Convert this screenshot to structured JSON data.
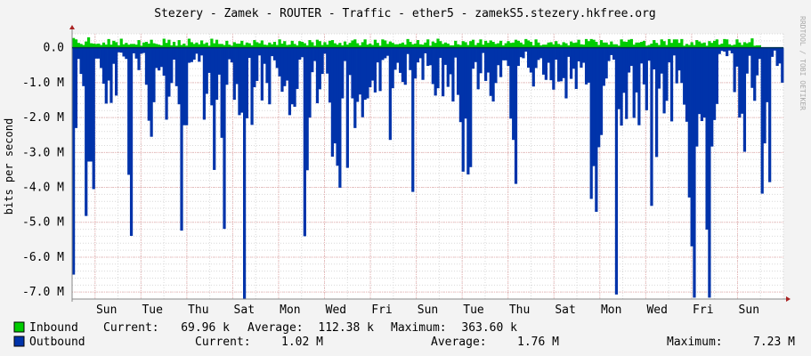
{
  "title": "Stezery - Zamek - ROUTER - Traffic - ether5 - zamekS5.stezery.hkfree.org",
  "watermark": "RRDTOOL / TOBI OETIKER",
  "colors": {
    "background": "#f3f3f3",
    "canvas": "#ffffff",
    "inbound": "#00cc00",
    "outbound": "#0033aa",
    "major_grid": "#e9b3b3",
    "minor_grid": "#d9d9d9",
    "axis": "#888888"
  },
  "chart_data": {
    "type": "area",
    "ylabel": "bits per second",
    "ylim": [
      -7200000,
      400000
    ],
    "y_ticks": [
      {
        "value": 0,
        "label": "0.0"
      },
      {
        "value": -1000000,
        "label": "-1.0 M"
      },
      {
        "value": -2000000,
        "label": "-2.0 M"
      },
      {
        "value": -3000000,
        "label": "-3.0 M"
      },
      {
        "value": -4000000,
        "label": "-4.0 M"
      },
      {
        "value": -5000000,
        "label": "-5.0 M"
      },
      {
        "value": -6000000,
        "label": "-6.0 M"
      },
      {
        "value": -7000000,
        "label": "-7.0 M"
      }
    ],
    "x_day_labels": [
      "Sun",
      "Tue",
      "Thu",
      "Sat",
      "Mon",
      "Wed",
      "Fri",
      "Sun",
      "Tue",
      "Thu",
      "Sat",
      "Mon",
      "Wed",
      "Fri",
      "Sun"
    ],
    "x_total_days": 31,
    "series": [
      {
        "name": "Inbound",
        "color": "#00cc00",
        "values": [
          280000,
          240000,
          140000,
          110000,
          80000,
          180000,
          300000,
          130000,
          120000,
          110000,
          120000,
          80000,
          150000,
          90000,
          250000,
          90000,
          200000,
          160000,
          70000,
          260000,
          100000,
          140000,
          90000,
          110000,
          110000,
          90000,
          220000,
          60000,
          150000,
          170000,
          120000,
          230000,
          130000,
          110000,
          90000,
          70000,
          260000,
          140000,
          230000,
          70000,
          170000,
          60000,
          220000,
          80000,
          120000,
          60000,
          260000,
          160000,
          110000,
          150000,
          100000,
          210000,
          110000,
          150000,
          60000,
          260000,
          130000,
          230000,
          110000,
          110000,
          80000,
          200000,
          90000,
          60000,
          160000,
          120000,
          120000,
          200000,
          80000,
          150000,
          130000,
          70000,
          220000,
          160000,
          130000,
          210000,
          90000,
          80000,
          150000,
          100000,
          170000,
          80000,
          240000,
          120000,
          190000,
          80000,
          90000,
          200000,
          110000,
          70000,
          190000,
          170000,
          130000,
          70000,
          220000,
          160000,
          60000,
          230000,
          190000,
          80000,
          160000,
          90000,
          200000,
          220000,
          130000,
          90000,
          140000,
          70000,
          180000,
          90000,
          140000,
          210000,
          240000,
          130000,
          70000,
          160000,
          240000,
          90000,
          120000,
          80000,
          230000,
          140000,
          60000,
          240000,
          210000,
          110000,
          180000,
          140000,
          100000,
          100000,
          120000,
          150000,
          90000,
          250000,
          170000,
          100000,
          120000,
          220000,
          100000,
          90000,
          150000,
          240000,
          60000,
          180000,
          140000,
          260000,
          190000,
          110000,
          150000,
          120000,
          70000,
          70000,
          200000,
          100000,
          80000,
          190000,
          160000,
          80000,
          190000,
          230000,
          80000,
          140000,
          240000,
          90000,
          200000,
          140000,
          210000,
          170000,
          110000,
          130000,
          200000,
          70000,
          130000,
          190000,
          140000,
          150000,
          230000,
          200000,
          150000,
          100000,
          250000,
          210000,
          170000,
          70000,
          240000,
          150000,
          70000,
          90000,
          90000,
          150000,
          160000,
          100000,
          190000,
          110000,
          80000,
          160000,
          130000,
          70000,
          180000,
          140000,
          150000,
          230000,
          100000,
          90000,
          250000,
          190000,
          250000,
          230000,
          170000,
          80000,
          220000,
          150000,
          150000,
          90000,
          180000,
          100000,
          100000,
          60000,
          240000,
          180000,
          170000,
          230000,
          250000,
          90000,
          150000,
          150000,
          170000,
          200000,
          60000,
          80000,
          120000,
          220000,
          140000,
          80000,
          240000,
          190000,
          80000,
          250000,
          140000,
          240000,
          240000,
          140000,
          250000,
          60000,
          110000,
          80000,
          160000,
          80000,
          220000,
          180000,
          130000,
          150000,
          60000,
          190000,
          140000,
          200000,
          240000,
          90000,
          120000,
          250000,
          240000,
          100000,
          70000,
          90000,
          240000,
          150000,
          80000,
          160000,
          130000,
          160000,
          270000,
          60000,
          70000,
          70000
        ],
        "current": "69.96 k",
        "average": "112.38 k",
        "maximum": "363.60 k"
      },
      {
        "name": "Outbound",
        "color": "#0033aa",
        "values": [
          -6500000,
          -2300000,
          -320000,
          -750000,
          -1100000,
          -4820000,
          -3260000,
          -3260000,
          -4050000,
          -310000,
          -310000,
          -580000,
          -1030000,
          -1600000,
          -940000,
          -1580000,
          -460000,
          -1370000,
          -130000,
          -140000,
          -250000,
          -320000,
          -3640000,
          -5390000,
          -160000,
          -310000,
          -640000,
          -170000,
          -150000,
          -1060000,
          -2090000,
          -2550000,
          -1560000,
          -580000,
          -650000,
          -550000,
          -800000,
          -2060000,
          -1400000,
          -1010000,
          -340000,
          -1100000,
          -1620000,
          -5240000,
          -2220000,
          -2220000,
          -430000,
          -410000,
          -340000,
          -170000,
          -400000,
          -220000,
          -2060000,
          -1320000,
          -720000,
          -1650000,
          -3500000,
          -1490000,
          -770000,
          -2580000,
          -5190000,
          -1060000,
          -330000,
          -420000,
          -1490000,
          -1040000,
          -1930000,
          -1860000,
          -7200000,
          -2020000,
          -290000,
          -2210000,
          -1130000,
          -950000,
          -220000,
          -1510000,
          -460000,
          -1010000,
          -1620000,
          -240000,
          -360000,
          -580000,
          -820000,
          -1260000,
          -1100000,
          -940000,
          -1930000,
          -1620000,
          -1690000,
          -1180000,
          -340000,
          -270000,
          -5400000,
          -3510000,
          -2000000,
          -700000,
          -380000,
          -1590000,
          -1190000,
          -750000,
          -170000,
          -740000,
          -1570000,
          -3120000,
          -2740000,
          -3380000,
          -4010000,
          -1450000,
          -380000,
          -3440000,
          -780000,
          -1450000,
          -2300000,
          -1550000,
          -1340000,
          -1990000,
          -1490000,
          -1450000,
          -1130000,
          -940000,
          -1280000,
          -420000,
          -1240000,
          -350000,
          -300000,
          -230000,
          -2640000,
          -1160000,
          -630000,
          -430000,
          -720000,
          -980000,
          -1060000,
          -180000,
          -640000,
          -4130000,
          -880000,
          -420000,
          -300000,
          -920000,
          -160000,
          -520000,
          -500000,
          -1040000,
          -1370000,
          -1160000,
          -290000,
          -1390000,
          -490000,
          -1120000,
          -760000,
          -1540000,
          -280000,
          -1350000,
          -2130000,
          -3550000,
          -2030000,
          -3630000,
          -3420000,
          -600000,
          -410000,
          -1190000,
          -730000,
          -150000,
          -950000,
          -710000,
          -1380000,
          -1540000,
          -1010000,
          -500000,
          -840000,
          -360000,
          -360000,
          -520000,
          -2030000,
          -2640000,
          -3900000,
          -520000,
          -270000,
          -300000,
          -110000,
          -570000,
          -710000,
          -1110000,
          -580000,
          -350000,
          -300000,
          -770000,
          -920000,
          -430000,
          -930000,
          -1200000,
          -340000,
          -970000,
          -960000,
          -870000,
          -1450000,
          -260000,
          -890000,
          -600000,
          -1180000,
          -390000,
          -570000,
          -430000,
          -1050000,
          -1000000,
          -4330000,
          -3390000,
          -4700000,
          -2850000,
          -2500000,
          -1090000,
          -880000,
          -380000,
          -210000,
          -340000,
          -7070000,
          -1760000,
          -2230000,
          -1290000,
          -2040000,
          -710000,
          -520000,
          -2010000,
          -1280000,
          -2220000,
          -450000,
          -1050000,
          -1790000,
          -370000,
          -4530000,
          -620000,
          -3130000,
          -1170000,
          -740000,
          -1880000,
          -1520000,
          -420000,
          -2110000,
          -220000,
          -1020000,
          -650000,
          -1010000,
          -1630000,
          -2120000,
          -4290000,
          -5690000,
          -7160000,
          -2830000,
          -1900000,
          -2100000,
          -2000000,
          -5210000,
          -7160000,
          -2830000,
          -2070000,
          -1610000,
          -180000,
          -90000,
          -110000,
          -240000,
          -80000,
          -160000,
          -1270000,
          -540000,
          -2000000,
          -1890000,
          -2980000,
          -740000,
          -230000,
          -1150000,
          -1520000,
          -790000,
          -320000,
          -4180000,
          -2740000,
          -1560000,
          -3850000,
          -260000,
          -80000,
          -520000,
          -450000,
          -1000000
        ],
        "current": "1.02 M",
        "average": "1.76 M",
        "maximum": "7.23 M"
      }
    ]
  },
  "legend": {
    "inbound": {
      "label": "Inbound",
      "current_label": "Current:",
      "current": "69.96 k",
      "average_label": "Average:",
      "average": "112.38 k",
      "maximum_label": "Maximum:",
      "maximum": "363.60 k"
    },
    "outbound": {
      "label": "Outbound",
      "current_label": "Current:",
      "current": "1.02 M",
      "average_label": "Average:",
      "average": "1.76 M",
      "maximum_label": "Maximum:",
      "maximum": "7.23 M"
    }
  }
}
